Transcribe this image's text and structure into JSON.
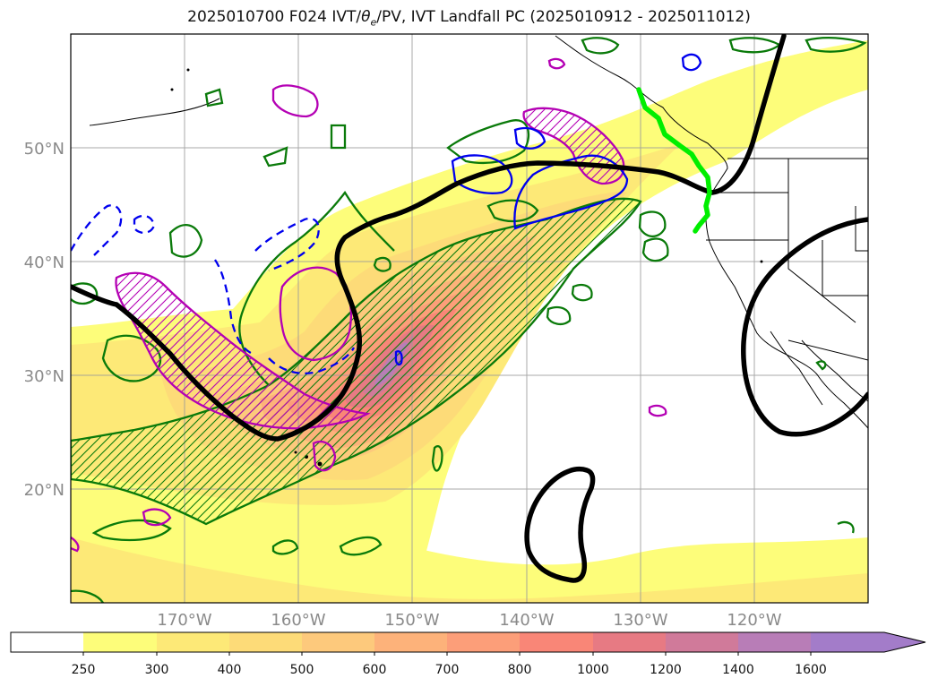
{
  "title": {
    "prefix": "2025010700 F024 IVT/",
    "theta": "θ",
    "theta_sub": "e",
    "suffix": "/PV, IVT Landfall PC (2025010912 - 2025011012)"
  },
  "map": {
    "lon_range": [
      -180,
      -110
    ],
    "lat_range": [
      10,
      60
    ],
    "lat_labels": [
      "50°N",
      "40°N",
      "30°N",
      "20°N"
    ],
    "lon_labels": [
      "170°W",
      "160°W",
      "150°W",
      "140°W",
      "130°W",
      "120°W"
    ],
    "grid": true
  },
  "colorbar": {
    "levels": [
      "250",
      "300",
      "400",
      "500",
      "600",
      "700",
      "800",
      "1000",
      "1200",
      "1400",
      "1600"
    ],
    "colors": [
      "#ffffff",
      "#fdfd7a",
      "#fde977",
      "#fddb78",
      "#fdc97c",
      "#fdb27a",
      "#fc9e79",
      "#f98677",
      "#e77a83",
      "#d07a9a",
      "#b87db7",
      "#a37cc9"
    ],
    "extend": "max"
  },
  "legend_colors": {
    "pc_contour": "#000000",
    "landfall_line": "#00ee00",
    "green_contours": "#0a7a0a",
    "magenta_contours": "#b400b4",
    "blue_contours": "#0000ee"
  }
}
